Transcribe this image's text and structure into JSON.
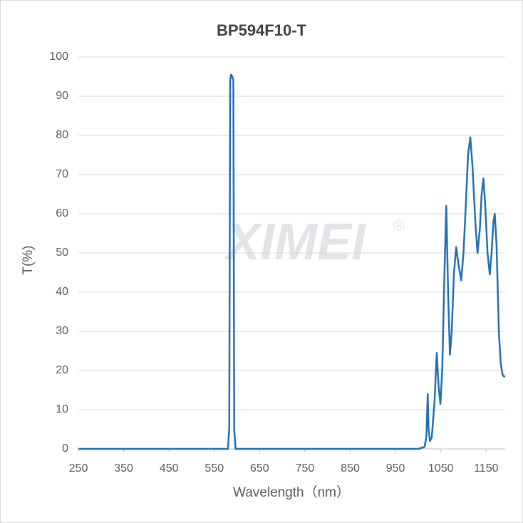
{
  "chart_data": {
    "type": "line",
    "title": "BP594F10-T",
    "watermark": "XIMEI",
    "watermark_mark": "®",
    "x_label": "Wavelength（nm）",
    "y_label": "T(%)",
    "xlim": [
      250,
      1192
    ],
    "xticks": [
      250,
      350,
      450,
      550,
      650,
      750,
      850,
      950,
      1050,
      1150
    ],
    "ylim": [
      0,
      100
    ],
    "yticks": [
      0,
      10,
      20,
      30,
      40,
      50,
      60,
      70,
      80,
      90,
      100
    ],
    "grid": true,
    "x": [
      250,
      580,
      583,
      585,
      587,
      590,
      592,
      594,
      597,
      1000,
      1014,
      1018,
      1021,
      1023,
      1026,
      1030,
      1036,
      1041,
      1045,
      1049,
      1053,
      1058,
      1062,
      1066,
      1070,
      1074,
      1079,
      1084,
      1089,
      1095,
      1100,
      1105,
      1110,
      1115,
      1120,
      1126,
      1131,
      1136,
      1140,
      1144,
      1148,
      1153,
      1158,
      1162,
      1166,
      1169,
      1173,
      1178,
      1182,
      1186,
      1189,
      1192
    ],
    "series": [
      {
        "color": "#1f6fb5",
        "values": [
          0,
          0,
          5,
          94,
          95.5,
          95,
          94,
          5,
          0,
          0,
          0.5,
          3,
          14,
          5,
          2,
          3,
          12,
          24.5,
          16,
          11.5,
          20,
          45,
          62,
          40,
          24,
          30,
          45,
          51.5,
          47,
          43,
          50,
          62,
          75,
          79.5,
          72,
          58,
          50,
          56,
          65,
          69,
          62,
          50,
          44.5,
          50,
          58,
          60,
          52,
          30,
          22,
          19,
          18.5,
          18.5
        ]
      }
    ]
  }
}
